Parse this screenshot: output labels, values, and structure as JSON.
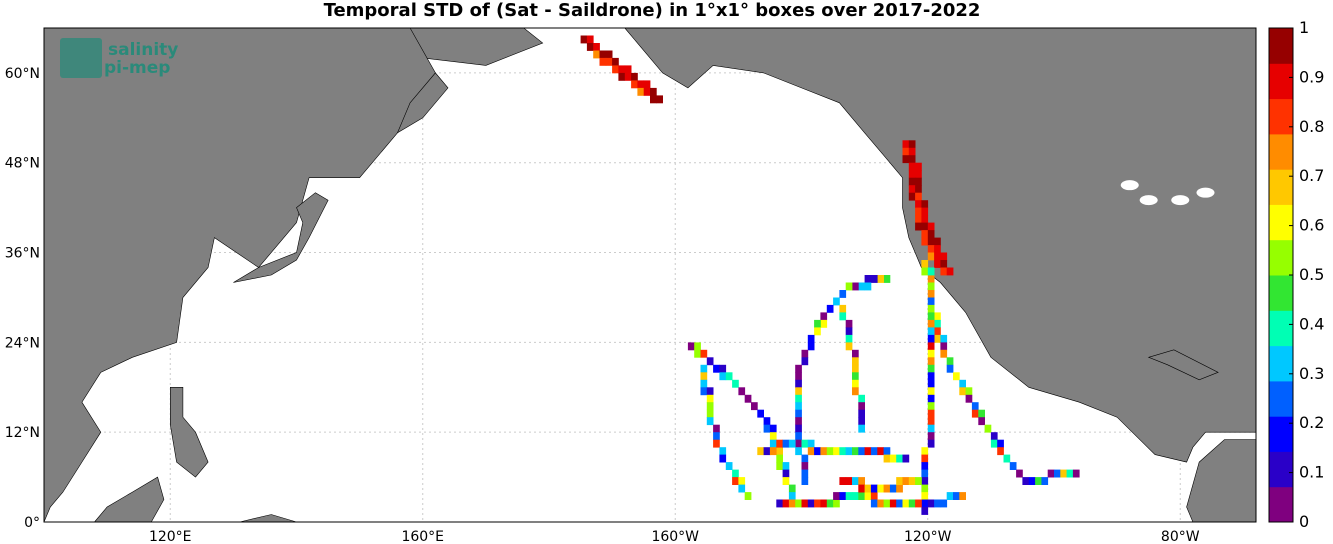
{
  "title": "Temporal STD of (Sat - Saildrone) in 1°x1° boxes over 2017-2022",
  "logo": {
    "line1": "salinity",
    "line2": "pi-mep",
    "color": "#2a8a7a"
  },
  "colors": {
    "land": "#808080",
    "ocean": "#ffffff",
    "grid": "#cccccc",
    "frame": "#000000"
  },
  "axes": {
    "lon_labels": [
      "120°E",
      "160°E",
      "160°W",
      "120°W",
      "80°W"
    ],
    "lat_labels": [
      "0°",
      "12°N",
      "24°N",
      "36°N",
      "48°N",
      "60°N"
    ]
  },
  "colorbar": {
    "ticks": [
      "0",
      "0.1",
      "0.2",
      "0.3",
      "0.4",
      "0.5",
      "0.6",
      "0.7",
      "0.8",
      "0.9",
      "1"
    ],
    "colors": [
      "#7f007f",
      "#2a00c8",
      "#0000ff",
      "#0060ff",
      "#00c8ff",
      "#00ffb4",
      "#32e632",
      "#96ff00",
      "#ffff00",
      "#ffc800",
      "#ff8c00",
      "#ff3200",
      "#e60000",
      "#960000"
    ]
  },
  "chart_data": {
    "type": "heatmap",
    "title": "Temporal STD of (Sat - Saildrone) in 1°x1° boxes over 2017-2022",
    "xlim": [
      100,
      292
    ],
    "ylim": [
      0,
      66
    ],
    "value_range": [
      0,
      1
    ],
    "cell_size_deg": 1,
    "tracks": [
      {
        "name": "alaska",
        "points": [
          [
            185,
            64
          ],
          [
            187,
            62
          ],
          [
            190,
            60
          ],
          [
            193,
            58
          ],
          [
            196,
            56
          ]
        ],
        "level": 0.95
      },
      {
        "name": "us-west-coast",
        "points": [
          [
            236,
            50
          ],
          [
            237,
            45
          ],
          [
            238,
            40
          ],
          [
            240,
            36
          ],
          [
            242,
            33
          ]
        ],
        "level": 0.95
      },
      {
        "name": "coastal-south",
        "points": [
          [
            239,
            34
          ],
          [
            240,
            30
          ],
          [
            241,
            25
          ],
          [
            243,
            20
          ],
          [
            247,
            15
          ],
          [
            251,
            9
          ],
          [
            255,
            5
          ],
          [
            263,
            6
          ]
        ],
        "level": 0.4
      },
      {
        "name": "meridian-120W",
        "points": [
          [
            240,
            33
          ],
          [
            240,
            24
          ],
          [
            240,
            14
          ],
          [
            239,
            5
          ],
          [
            239,
            1
          ]
        ],
        "level": 0.45
      },
      {
        "name": "loop-west",
        "points": [
          [
            233,
            32
          ],
          [
            227,
            31
          ],
          [
            223,
            27
          ],
          [
            219,
            20
          ],
          [
            219,
            12
          ],
          [
            220,
            5
          ]
        ],
        "level": 0.3
      },
      {
        "name": "loop-mid",
        "points": [
          [
            226,
            28
          ],
          [
            228,
            20
          ],
          [
            229,
            12
          ]
        ],
        "level": 0.3
      },
      {
        "name": "hawaii-arc",
        "points": [
          [
            202,
            23
          ],
          [
            206,
            20
          ],
          [
            210,
            17
          ],
          [
            214,
            13
          ],
          [
            216,
            8
          ],
          [
            218,
            3
          ]
        ],
        "level": 0.4
      },
      {
        "name": "hawaii-south",
        "points": [
          [
            204,
            20
          ],
          [
            205,
            14
          ],
          [
            207,
            8
          ],
          [
            211,
            3
          ]
        ],
        "level": 0.4
      },
      {
        "name": "eq-band-1",
        "points": [
          [
            213,
            9
          ],
          [
            218,
            10
          ],
          [
            224,
            9
          ],
          [
            230,
            9
          ],
          [
            236,
            8
          ]
        ],
        "level": 0.5
      },
      {
        "name": "eq-band-2",
        "points": [
          [
            216,
            2
          ],
          [
            222,
            2
          ],
          [
            228,
            3
          ],
          [
            234,
            2
          ],
          [
            240,
            2
          ],
          [
            245,
            3
          ]
        ],
        "level": 0.45
      },
      {
        "name": "eq-band-3",
        "points": [
          [
            226,
            5
          ],
          [
            232,
            4
          ],
          [
            238,
            5
          ]
        ],
        "level": 0.5
      }
    ]
  }
}
